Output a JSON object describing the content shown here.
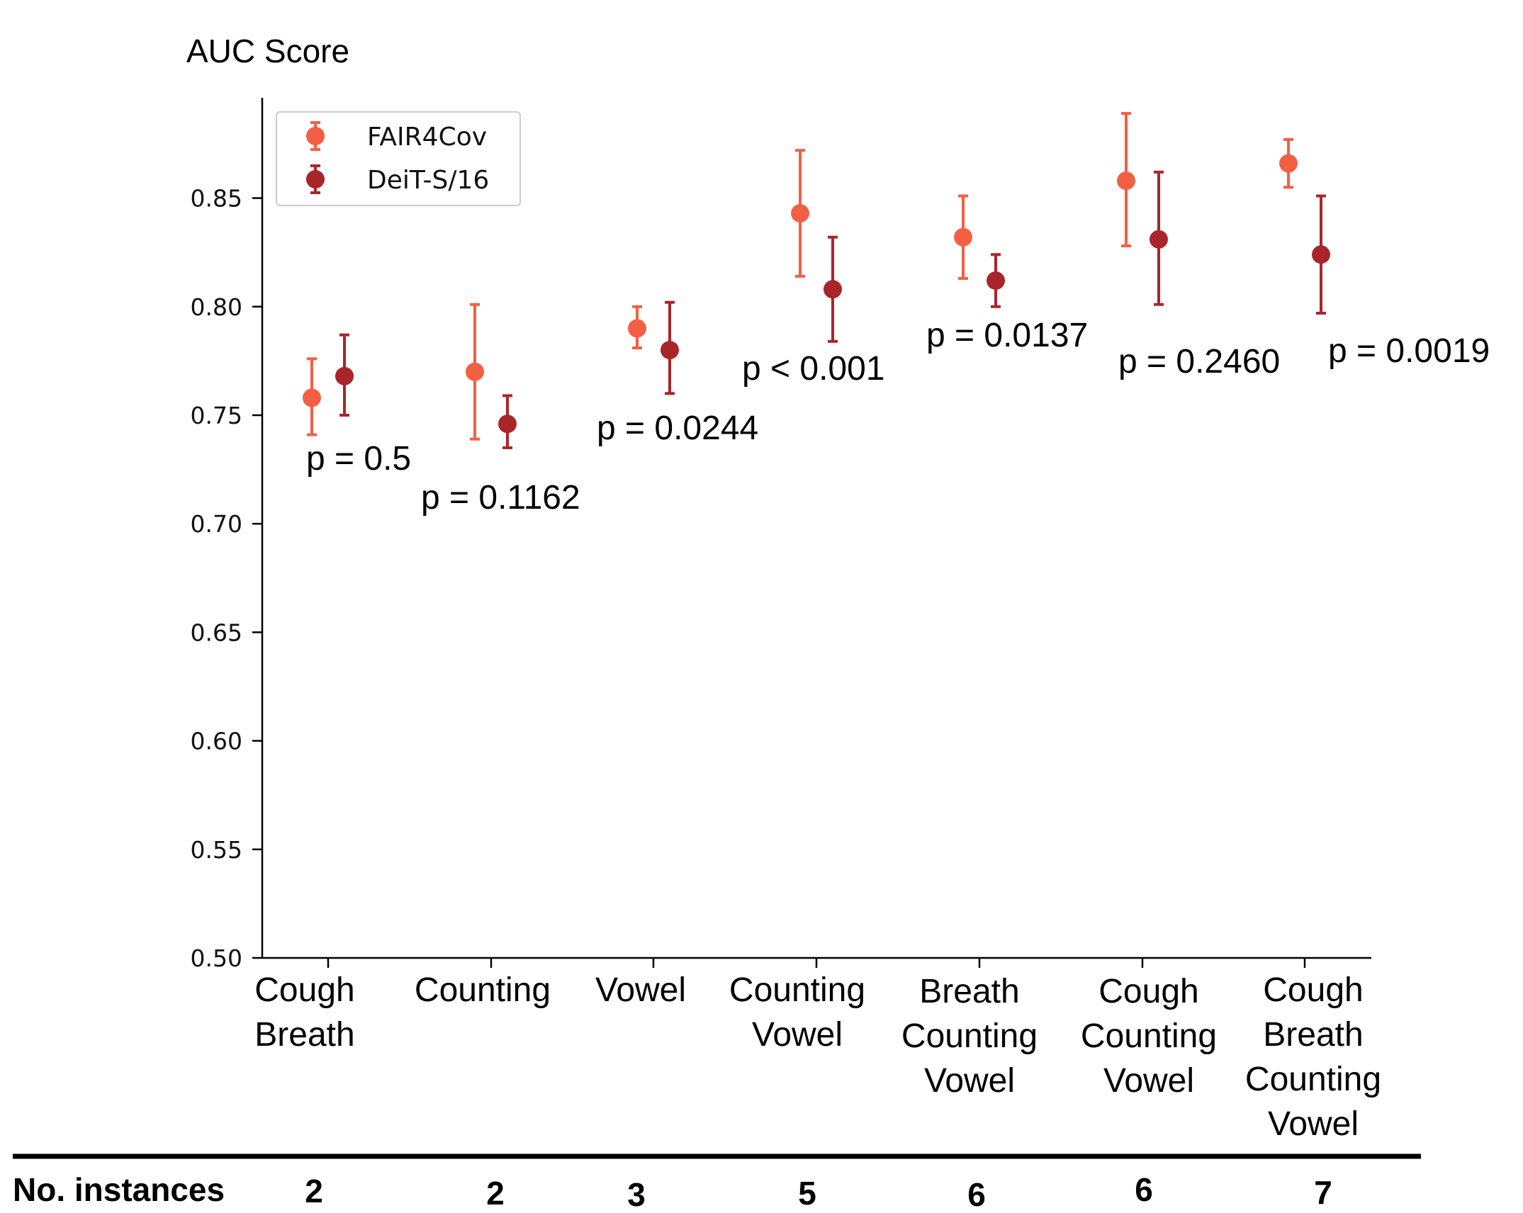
{
  "chart_data": {
    "type": "scatter",
    "subtype": "errorbar",
    "ylabel": "AUC Score",
    "ylim": [
      0.5,
      0.895
    ],
    "yticks": [
      "0.50",
      "0.55",
      "0.60",
      "0.65",
      "0.70",
      "0.75",
      "0.80",
      "0.85"
    ],
    "categories": [
      [
        "Cough",
        "Breath"
      ],
      [
        "Counting"
      ],
      [
        "Vowel"
      ],
      [
        "Counting",
        "Vowel"
      ],
      [
        "Breath",
        "Counting",
        "Vowel"
      ],
      [
        "Cough",
        "Counting",
        "Vowel"
      ],
      [
        "Cough",
        "Breath",
        "Counting",
        "Vowel"
      ]
    ],
    "series": [
      {
        "name": "FAIR4Cov",
        "color": "#f45f44",
        "values": [
          0.758,
          0.77,
          0.79,
          0.843,
          0.832,
          0.858,
          0.866
        ],
        "err_low": [
          0.741,
          0.739,
          0.781,
          0.814,
          0.813,
          0.828,
          0.855
        ],
        "err_high": [
          0.776,
          0.801,
          0.8,
          0.872,
          0.851,
          0.889,
          0.877
        ]
      },
      {
        "name": "DeiT-S/16",
        "color": "#a8262a",
        "values": [
          0.768,
          0.746,
          0.78,
          0.808,
          0.812,
          0.831,
          0.824
        ],
        "err_low": [
          0.75,
          0.735,
          0.76,
          0.784,
          0.8,
          0.801,
          0.797
        ],
        "err_high": [
          0.787,
          0.759,
          0.802,
          0.832,
          0.824,
          0.862,
          0.851
        ]
      }
    ],
    "annotations": [
      "p = 0.5",
      "p = 0.1162",
      "p = 0.0244",
      "p < 0.001",
      "p = 0.0137",
      "p = 0.2460",
      "p = 0.0019"
    ],
    "legend_position": "top-left",
    "instances_label": "No. instances",
    "instances": [
      "2",
      "2",
      "3",
      "5",
      "6",
      "6",
      "7"
    ]
  }
}
